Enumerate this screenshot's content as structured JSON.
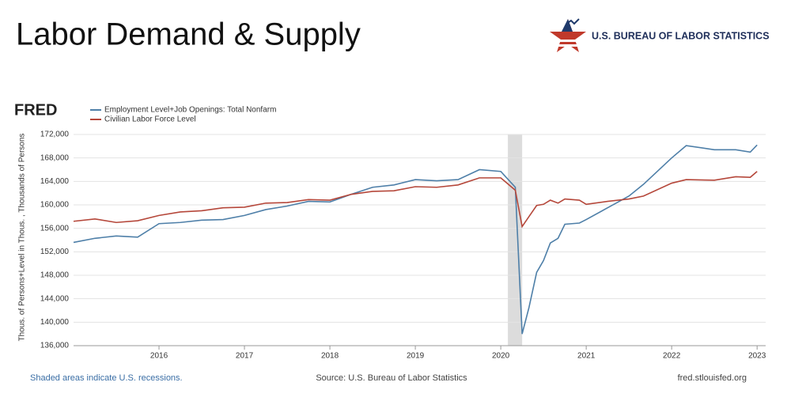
{
  "header": {
    "title": "Labor Demand & Supply",
    "org": "U.S. BUREAU OF LABOR STATISTICS"
  },
  "chart_data": {
    "type": "line",
    "brand": "FRED",
    "ylabel": "Thous. of Persons+Level in Thous. , Thousands of Persons",
    "note": "Shaded areas indicate U.S. recessions.",
    "source": "Source: U.S. Bureau of Labor Statistics",
    "url": "fred.stlouisfed.org",
    "recessions": [
      [
        2020.083,
        2020.25
      ]
    ],
    "xlim": [
      2015.0,
      2023.1
    ],
    "xticks": [
      2016,
      2017,
      2018,
      2019,
      2020,
      2021,
      2022,
      2023
    ],
    "ylim": [
      136000,
      172000
    ],
    "yticks": [
      {
        "value": 136000,
        "label": "136,000"
      },
      {
        "value": 140000,
        "label": "140,000"
      },
      {
        "value": 144000,
        "label": "144,000"
      },
      {
        "value": 148000,
        "label": "148,000"
      },
      {
        "value": 152000,
        "label": "152,000"
      },
      {
        "value": 156000,
        "label": "156,000"
      },
      {
        "value": 160000,
        "label": "160,000"
      },
      {
        "value": 164000,
        "label": "164,000"
      },
      {
        "value": 168000,
        "label": "168,000"
      },
      {
        "value": 172000,
        "label": "172,000"
      }
    ],
    "grid": true,
    "x": [
      2015.0,
      2015.25,
      2015.5,
      2015.75,
      2016.0,
      2016.25,
      2016.5,
      2016.75,
      2017.0,
      2017.25,
      2017.5,
      2017.75,
      2018.0,
      2018.25,
      2018.5,
      2018.75,
      2019.0,
      2019.25,
      2019.5,
      2019.75,
      2020.0,
      2020.17,
      2020.25,
      2020.33,
      2020.42,
      2020.5,
      2020.58,
      2020.67,
      2020.75,
      2020.92,
      2021.0,
      2021.25,
      2021.5,
      2021.67,
      2022.0,
      2022.17,
      2022.5,
      2022.75,
      2022.92,
      2023.0
    ],
    "series": [
      {
        "name": "Employment Level+Job Openings: Total Nonfarm",
        "color": "#4e7fa8",
        "values": [
          153600,
          154300,
          154700,
          154500,
          156800,
          157000,
          157400,
          157500,
          158200,
          159200,
          159800,
          160600,
          160500,
          161800,
          163000,
          163400,
          164300,
          164100,
          164300,
          166000,
          165700,
          163000,
          138000,
          142500,
          148500,
          150500,
          153500,
          154300,
          156700,
          156900,
          157500,
          159500,
          161500,
          163500,
          168000,
          170100,
          169400,
          169400,
          169000,
          170200
        ]
      },
      {
        "name": "Civilian Labor Force Level",
        "color": "#b5473a",
        "values": [
          157200,
          157600,
          157000,
          157300,
          158200,
          158800,
          159000,
          159500,
          159600,
          160300,
          160400,
          160900,
          160800,
          161800,
          162300,
          162400,
          163100,
          163000,
          163400,
          164600,
          164600,
          162500,
          156300,
          158000,
          159900,
          160100,
          160800,
          160300,
          161000,
          160800,
          160100,
          160600,
          161000,
          161500,
          163700,
          164300,
          164200,
          164800,
          164700,
          165700
        ]
      }
    ]
  }
}
